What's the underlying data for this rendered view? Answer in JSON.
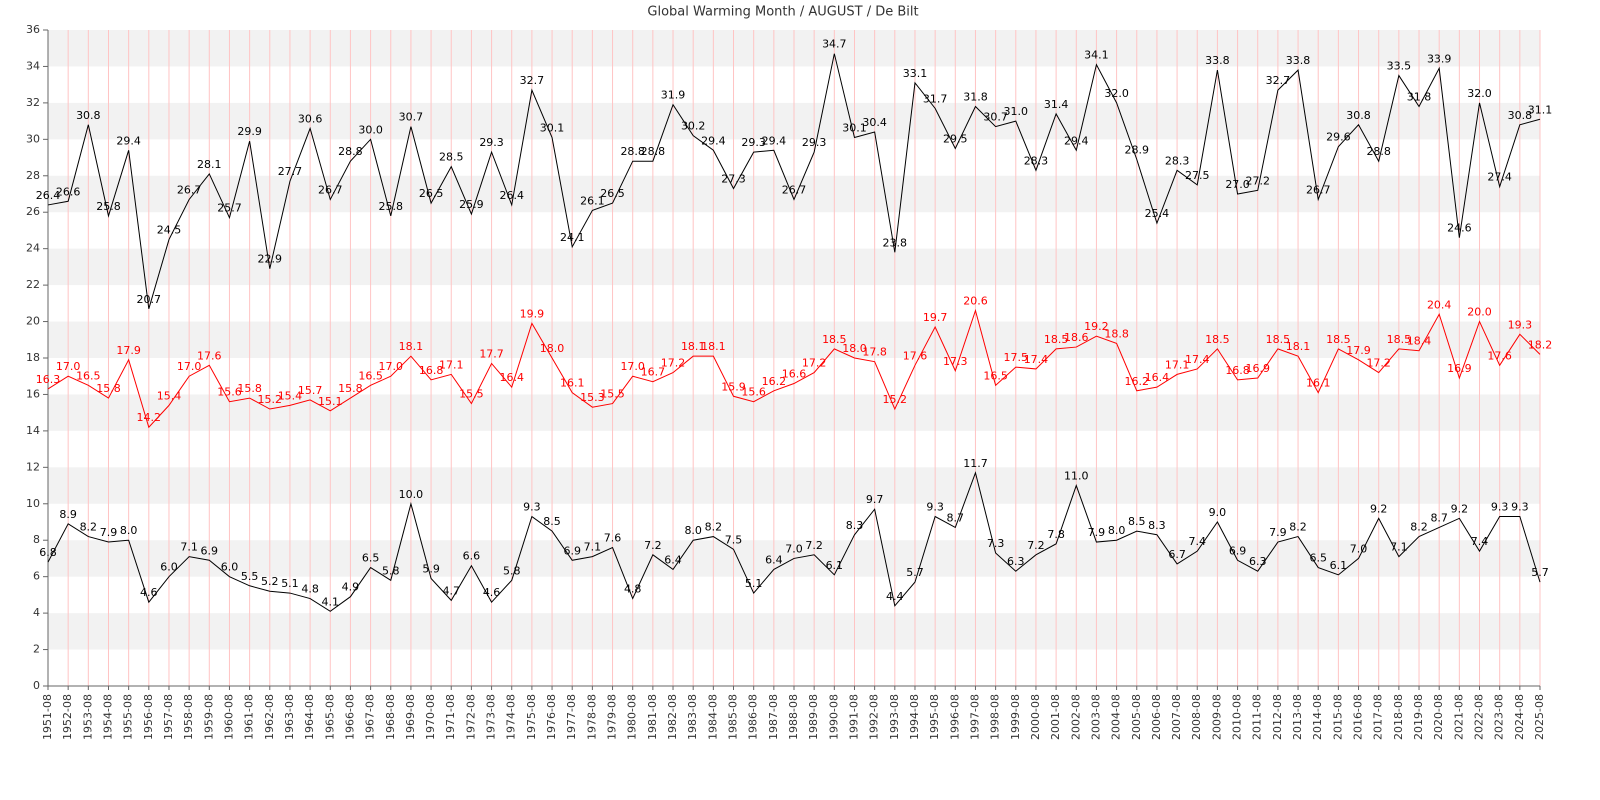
{
  "chart_data": {
    "type": "line",
    "title": "Global Warming Month / AUGUST / De Bilt",
    "categories": [
      "1951-08",
      "1952-08",
      "1953-08",
      "1954-08",
      "1955-08",
      "1956-08",
      "1957-08",
      "1958-08",
      "1959-08",
      "1960-08",
      "1961-08",
      "1962-08",
      "1963-08",
      "1964-08",
      "1965-08",
      "1966-08",
      "1967-08",
      "1968-08",
      "1969-08",
      "1970-08",
      "1971-08",
      "1972-08",
      "1973-08",
      "1974-08",
      "1975-08",
      "1976-08",
      "1977-08",
      "1978-08",
      "1979-08",
      "1980-08",
      "1981-08",
      "1982-08",
      "1983-08",
      "1984-08",
      "1985-08",
      "1986-08",
      "1987-08",
      "1988-08",
      "1989-08",
      "1990-08",
      "1991-08",
      "1992-08",
      "1993-08",
      "1994-08",
      "1995-08",
      "1996-08",
      "1997-08",
      "1998-08",
      "1999-08",
      "2000-08",
      "2001-08",
      "2002-08",
      "2003-08",
      "2004-08",
      "2005-08",
      "2006-08",
      "2007-08",
      "2008-08",
      "2009-08",
      "2010-08",
      "2011-08",
      "2012-08",
      "2013-08",
      "2014-08",
      "2015-08",
      "2016-08",
      "2017-08",
      "2018-08",
      "2019-08",
      "2020-08",
      "2021-08",
      "2022-08",
      "2023-08",
      "2024-08",
      "2025-08"
    ],
    "series": [
      {
        "color": "#000000",
        "values": [
          26.4,
          26.6,
          30.8,
          25.8,
          29.4,
          20.7,
          24.5,
          26.7,
          28.1,
          25.7,
          29.9,
          22.9,
          27.7,
          30.6,
          26.7,
          28.8,
          30.0,
          25.8,
          30.7,
          26.5,
          28.5,
          25.9,
          29.3,
          26.4,
          32.7,
          30.1,
          24.1,
          26.1,
          26.5,
          28.8,
          28.8,
          31.9,
          30.2,
          29.4,
          27.3,
          29.3,
          29.4,
          26.7,
          29.3,
          34.7,
          30.1,
          30.4,
          23.8,
          33.1,
          31.7,
          29.5,
          31.8,
          30.7,
          31.0,
          28.3,
          31.4,
          29.4,
          34.1,
          32.0,
          28.9,
          25.4,
          28.3,
          27.5,
          33.8,
          27.0,
          27.2,
          32.7,
          33.8,
          26.7,
          29.6,
          30.8,
          28.8,
          33.5,
          31.8,
          33.9,
          24.6,
          32.0,
          27.4,
          30.8,
          31.1
        ],
        "value_labels": [
          "26.4",
          "26.6",
          "30.8",
          "25.8",
          "29.4",
          "20.7",
          "24.5",
          "26.7",
          "28.1",
          "25.7",
          "29.9",
          "22.9",
          "27.7",
          "30.6",
          "26.7",
          "28.8",
          "30.0",
          "25.8",
          "30.7",
          "26.5",
          "28.5",
          "25.9",
          "29.3",
          "26.4",
          "32.7",
          "30.1",
          "24.1",
          "26.1",
          "26.5",
          "28.8",
          "28.8",
          "31.9",
          "30.2",
          "29.4",
          "27.3",
          "29.3",
          "29.4",
          "26.7",
          "29.3",
          "34.7",
          "30.1",
          "30.4",
          "23.8",
          "33.1",
          "31.7",
          "29.5",
          "31.8",
          "30.7",
          "31.0",
          "28.3",
          "31.4",
          "29.4",
          "34.1",
          "32.0",
          "28.9",
          "25.4",
          "28.3",
          "27.5",
          "33.8",
          "27.0",
          "27.2",
          "32.7",
          "33.8",
          "26.7",
          "29.6",
          "30.8",
          "28.8",
          "33.5",
          "31.8",
          "33.9",
          "24.6",
          "32.0",
          "27.4",
          "30.8",
          "31.1"
        ]
      },
      {
        "color": "#ff0000",
        "values": [
          16.3,
          17.0,
          16.5,
          15.8,
          17.9,
          14.2,
          15.4,
          17.0,
          17.6,
          15.6,
          15.8,
          15.2,
          15.4,
          15.7,
          15.1,
          15.8,
          16.5,
          17.0,
          18.1,
          16.8,
          17.1,
          15.5,
          17.7,
          16.4,
          19.9,
          18.0,
          16.1,
          15.3,
          15.5,
          17.0,
          16.7,
          17.2,
          18.1,
          18.1,
          15.9,
          15.6,
          16.2,
          16.6,
          17.2,
          18.5,
          18.0,
          17.8,
          15.2,
          17.6,
          19.7,
          17.3,
          20.6,
          16.5,
          17.5,
          17.4,
          18.5,
          18.6,
          19.2,
          18.8,
          16.2,
          16.4,
          17.1,
          17.4,
          18.5,
          16.8,
          16.9,
          18.5,
          18.1,
          16.1,
          18.5,
          17.9,
          17.2,
          18.5,
          18.4,
          20.4,
          16.9,
          20.0,
          17.6,
          19.3,
          18.2
        ],
        "value_labels": [
          "16.3",
          "17.0",
          "16.5",
          "15.8",
          "17.9",
          "14.2",
          "15.4",
          "17.0",
          "17.6",
          "15.6",
          "15.8",
          "15.2",
          "15.4",
          "15.7",
          "15.1",
          "15.8",
          "16.5",
          "17.0",
          "18.1",
          "16.8",
          "17.1",
          "15.5",
          "17.7",
          "16.4",
          "19.9",
          "18.0",
          "16.1",
          "15.3",
          "15.5",
          "17.0",
          "16.7",
          "17.2",
          "18.1",
          "18.1",
          "15.9",
          "15.6",
          "16.2",
          "16.6",
          "17.2",
          "18.5",
          "18.0",
          "17.8",
          "15.2",
          "17.6",
          "19.7",
          "17.3",
          "20.6",
          "16.5",
          "17.5",
          "17.4",
          "18.5",
          "18.6",
          "19.2",
          "18.8",
          "16.2",
          "16.4",
          "17.1",
          "17.4",
          "18.5",
          "16.8",
          "16.9",
          "18.5",
          "18.1",
          "16.1",
          "18.5",
          "17.9",
          "17.2",
          "18.5",
          "18.4",
          "20.4",
          "16.9",
          "20.0",
          "17.6",
          "19.3",
          "18.2"
        ]
      },
      {
        "color": "#000000",
        "values": [
          6.8,
          8.9,
          8.2,
          7.9,
          8.0,
          4.6,
          6.0,
          7.1,
          6.9,
          6.0,
          5.5,
          5.2,
          5.1,
          4.8,
          4.1,
          4.9,
          6.5,
          5.8,
          10.0,
          5.9,
          4.7,
          6.6,
          4.6,
          5.8,
          9.3,
          8.5,
          6.9,
          7.1,
          7.6,
          4.8,
          7.2,
          6.4,
          8.0,
          8.2,
          7.5,
          5.1,
          6.4,
          7.0,
          7.2,
          6.1,
          8.3,
          9.7,
          4.4,
          5.7,
          9.3,
          8.7,
          11.7,
          7.3,
          6.3,
          7.2,
          7.8,
          11.0,
          7.9,
          8.0,
          8.5,
          8.3,
          6.7,
          7.4,
          9.0,
          6.9,
          6.3,
          7.9,
          8.2,
          6.5,
          6.1,
          7.0,
          9.2,
          7.1,
          8.2,
          8.7,
          9.2,
          7.4,
          9.3,
          9.3,
          5.7
        ],
        "value_labels": [
          "6.8",
          "8.9",
          "8.2",
          "7.9",
          "8.0",
          "4.6",
          "6.0",
          "7.1",
          "6.9",
          "6.0",
          "5.5",
          "5.2",
          "5.1",
          "4.8",
          "4.1",
          "4.9",
          "6.5",
          "5.8",
          "10.0",
          "5.9",
          "4.7",
          "6.6",
          "4.6",
          "5.8",
          "9.3",
          "8.5",
          "6.9",
          "7.1",
          "7.6",
          "4.8",
          "7.2",
          "6.4",
          "8.0",
          "8.2",
          "7.5",
          "5.1",
          "6.4",
          "7.0",
          "7.2",
          "6.1",
          "8.3",
          "9.7",
          "4.4",
          "5.7",
          "9.3",
          "8.7",
          "11.7",
          "7.3",
          "6.3",
          "7.2",
          "7.8",
          "11.0",
          "7.9",
          "8.0",
          "8.5",
          "8.3",
          "6.7",
          "7.4",
          "9.0",
          "6.9",
          "6.3",
          "7.9",
          "8.2",
          "6.5",
          "6.1",
          "7.0",
          "9.2",
          "7.1",
          "8.2",
          "8.7",
          "9.2",
          "7.4",
          "9.3",
          "9.3",
          "5.7"
        ]
      }
    ],
    "ylim": [
      0,
      36
    ],
    "yticks": [
      0,
      2,
      4,
      6,
      8,
      10,
      12,
      14,
      16,
      18,
      20,
      22,
      24,
      26,
      28,
      30,
      32,
      34,
      36
    ],
    "grid": true,
    "band_color": "#f2f2f2",
    "vgrid_color": "#ffc4c4"
  }
}
